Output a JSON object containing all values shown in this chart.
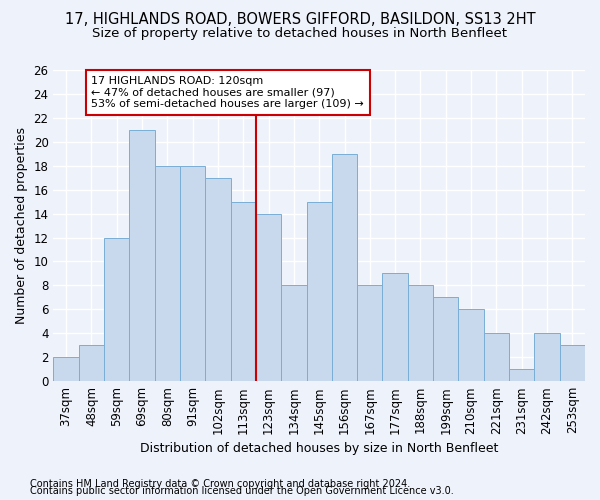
{
  "title1": "17, HIGHLANDS ROAD, BOWERS GIFFORD, BASILDON, SS13 2HT",
  "title2": "Size of property relative to detached houses in North Benfleet",
  "xlabel": "Distribution of detached houses by size in North Benfleet",
  "ylabel": "Number of detached properties",
  "categories": [
    "37sqm",
    "48sqm",
    "59sqm",
    "69sqm",
    "80sqm",
    "91sqm",
    "102sqm",
    "113sqm",
    "123sqm",
    "134sqm",
    "145sqm",
    "156sqm",
    "167sqm",
    "177sqm",
    "188sqm",
    "199sqm",
    "210sqm",
    "221sqm",
    "231sqm",
    "242sqm",
    "253sqm"
  ],
  "values": [
    2,
    3,
    12,
    21,
    18,
    18,
    17,
    15,
    14,
    8,
    15,
    19,
    8,
    9,
    8,
    7,
    6,
    4,
    1,
    4,
    3
  ],
  "bar_color": "#c8d9ee",
  "bar_edge_color": "#7aaed6",
  "vline_x": 8,
  "vline_color": "#cc0000",
  "annotation_text": "17 HIGHLANDS ROAD: 120sqm\n← 47% of detached houses are smaller (97)\n53% of semi-detached houses are larger (109) →",
  "annotation_box_color": "#ffffff",
  "annotation_box_edge_color": "#cc0000",
  "ylim": [
    0,
    26
  ],
  "yticks": [
    0,
    2,
    4,
    6,
    8,
    10,
    12,
    14,
    16,
    18,
    20,
    22,
    24,
    26
  ],
  "footnote1": "Contains HM Land Registry data © Crown copyright and database right 2024.",
  "footnote2": "Contains public sector information licensed under the Open Government Licence v3.0.",
  "bg_color": "#eef2fb",
  "grid_color": "#ffffff",
  "title_fontsize": 10.5,
  "subtitle_fontsize": 9.5,
  "axis_label_fontsize": 9,
  "tick_fontsize": 8.5,
  "footnote_fontsize": 7
}
